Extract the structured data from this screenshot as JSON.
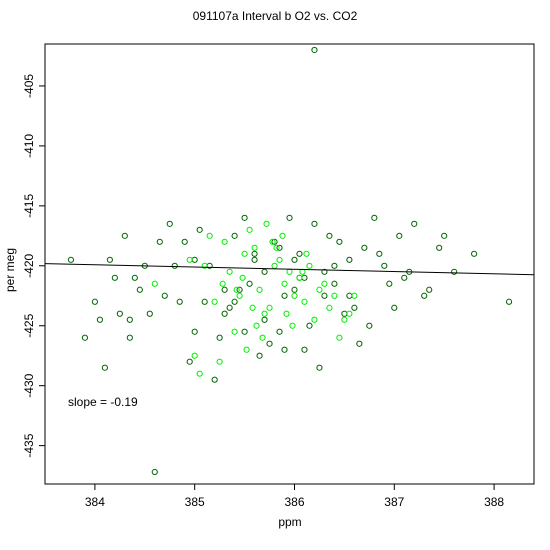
{
  "chart_data": {
    "type": "scatter",
    "title": "091107a   Interval b O2 vs. CO2",
    "xlabel": "ppm",
    "ylabel": "per meg",
    "xlim": [
      383.5,
      388.4
    ],
    "ylim": [
      -438.2,
      -401.5
    ],
    "x_ticks": [
      384,
      385,
      386,
      387,
      388
    ],
    "y_ticks": [
      -405,
      -410,
      -415,
      -420,
      -425,
      -430,
      -435
    ],
    "annotation": "slope =  -0.19",
    "fit_line": {
      "slope": -0.19,
      "intercept": -346.95
    },
    "colors": {
      "dark": "#006400",
      "light": "#00ee00",
      "line": "#000000"
    },
    "series": [
      {
        "color": "#006400",
        "x": [
          386.2,
          384.6,
          383.76,
          387.8,
          388.15,
          384.75,
          386.8,
          386.0,
          385.3,
          385.6,
          384.35,
          385.5,
          386.4,
          386.9,
          384.1,
          387.45,
          385.9,
          384.2,
          386.55,
          385.1,
          384.9,
          385.7,
          386.3,
          387.2,
          384.45,
          386.1,
          385.4,
          387.0,
          384.0,
          386.7,
          385.2,
          386.05,
          385.85,
          384.8,
          387.3,
          383.9,
          386.5,
          385.0,
          385.65,
          386.35,
          384.55,
          387.1,
          385.45,
          386.25,
          384.65,
          385.95,
          386.65,
          387.6,
          384.3,
          385.55,
          386.15,
          385.35,
          386.85,
          384.05,
          385.75,
          386.45,
          385.15,
          384.85,
          386.0,
          387.35,
          385.8,
          384.4,
          386.6,
          385.25,
          385.05,
          386.95,
          384.25,
          385.6,
          386.3,
          387.05,
          385.9,
          384.7,
          386.4,
          385.5,
          384.95,
          386.1,
          385.3,
          387.5,
          384.15,
          386.75,
          385.7,
          386.2,
          385.0,
          384.5,
          386.55,
          385.4,
          385.85,
          387.15,
          384.35,
          386.05
        ],
        "y": [
          -402.0,
          -437.2,
          -419.5,
          -419.0,
          -423.0,
          -416.5,
          -416.0,
          -422.0,
          -424.0,
          -419.0,
          -426.0,
          -425.5,
          -421.5,
          -420.0,
          -428.5,
          -418.5,
          -422.5,
          -421.0,
          -419.5,
          -423.0,
          -418.0,
          -424.5,
          -420.5,
          -416.5,
          -422.0,
          -427.0,
          -417.5,
          -423.5,
          -423.0,
          -418.5,
          -429.5,
          -421.0,
          -425.5,
          -420.0,
          -422.5,
          -426.0,
          -424.0,
          -419.5,
          -427.5,
          -417.5,
          -424.0,
          -421.0,
          -422.0,
          -428.5,
          -418.0,
          -416.0,
          -426.5,
          -420.5,
          -417.5,
          -421.5,
          -425.0,
          -423.5,
          -419.0,
          -424.5,
          -426.5,
          -418.0,
          -420.0,
          -423.0,
          -419.5,
          -422.0,
          -418.0,
          -421.0,
          -423.5,
          -426.0,
          -417.0,
          -421.5,
          -424.0,
          -419.5,
          -422.5,
          -417.5,
          -427.0,
          -422.5,
          -420.0,
          -416.0,
          -428.0,
          -421.0,
          -422.0,
          -417.5,
          -419.5,
          -425.0,
          -420.5,
          -416.5,
          -425.5,
          -420.0,
          -422.5,
          -423.0,
          -418.5,
          -420.5,
          -424.5,
          -419.0
        ]
      },
      {
        "color": "#00ee00",
        "x": [
          385.6,
          385.8,
          386.0,
          385.7,
          385.9,
          385.5,
          386.1,
          385.4,
          385.65,
          385.95,
          385.3,
          386.2,
          385.75,
          385.55,
          386.05,
          385.85,
          385.45,
          386.15,
          385.2,
          385.62,
          386.3,
          385.78,
          385.92,
          385.35,
          386.25,
          385.68,
          385.88,
          385.48,
          386.12,
          385.58,
          385.1,
          386.4,
          385.72,
          385.98,
          385.28,
          386.35,
          385.82,
          385.52,
          386.08,
          385.42,
          384.6,
          385.25,
          386.5,
          385.0,
          386.6,
          385.05,
          384.95,
          386.45,
          385.15,
          386.55
        ],
        "y": [
          -418.5,
          -420.0,
          -422.5,
          -424.0,
          -421.5,
          -419.0,
          -423.0,
          -425.5,
          -422.0,
          -420.5,
          -418.0,
          -424.5,
          -423.5,
          -417.0,
          -421.0,
          -419.5,
          -422.5,
          -420.0,
          -423.0,
          -425.0,
          -421.5,
          -418.0,
          -424.0,
          -420.5,
          -422.0,
          -426.0,
          -417.5,
          -421.0,
          -419.0,
          -423.5,
          -420.0,
          -422.5,
          -416.5,
          -425.0,
          -421.5,
          -423.5,
          -418.5,
          -427.0,
          -420.5,
          -422.0,
          -421.5,
          -428.0,
          -424.5,
          -427.5,
          -422.5,
          -429.0,
          -419.5,
          -426.0,
          -417.5,
          -424.0
        ]
      }
    ]
  }
}
